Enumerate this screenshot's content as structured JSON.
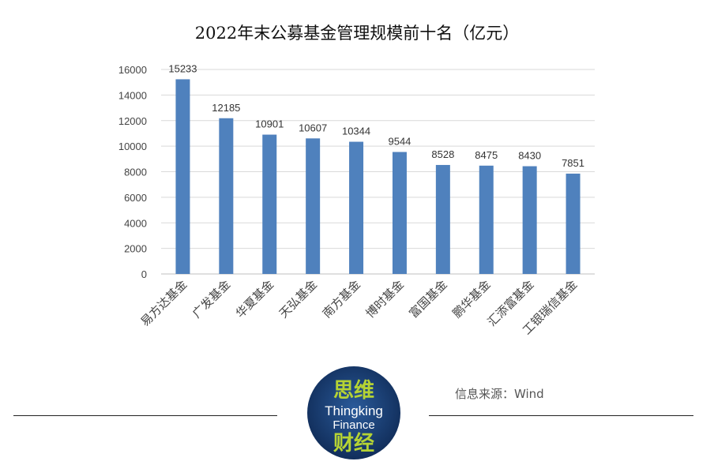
{
  "chart_data": {
    "type": "bar",
    "title": "2022年末公募基金管理规模前十名（亿元）",
    "categories": [
      "易方达基金",
      "广发基金",
      "华夏基金",
      "天弘基金",
      "南方基金",
      "博时基金",
      "富国基金",
      "鹏华基金",
      "汇添富基金",
      "工银瑞信基金"
    ],
    "values": [
      15233,
      12185,
      10901,
      10607,
      10344,
      9544,
      8528,
      8475,
      8430,
      7851
    ],
    "yticks": [
      0,
      2000,
      4000,
      6000,
      8000,
      10000,
      12000,
      14000,
      16000
    ],
    "ylim": [
      0,
      16000
    ],
    "grid": true,
    "bar_color": "#4f81bd",
    "xlabel": "",
    "ylabel": ""
  },
  "source": "信息来源：Wind",
  "logo": {
    "line1": "思维",
    "line2": "Thingking",
    "line3": "Finance",
    "line4": "财经",
    "bg_color": "#1a3a6b",
    "accent_color": "#b5d334"
  }
}
